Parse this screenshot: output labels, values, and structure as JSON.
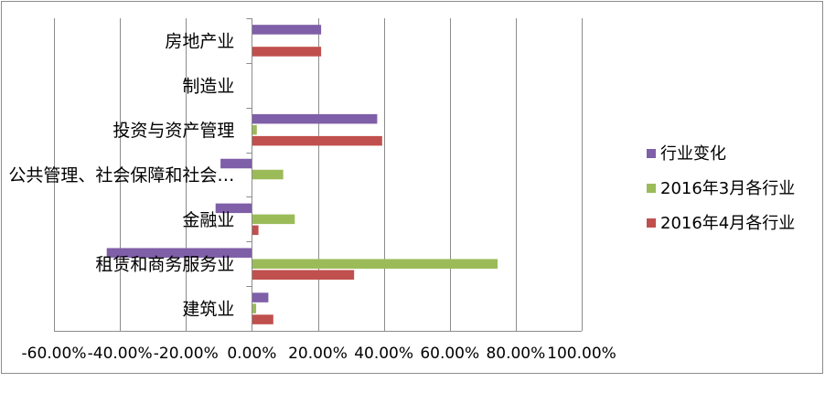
{
  "chart_data": {
    "type": "bar",
    "orientation": "horizontal",
    "categories": [
      "房地产业",
      "制造业",
      "投资与资产管理",
      "公共管理、社会保障和社会…",
      "金融业",
      "租赁和商务服务业",
      "建筑业"
    ],
    "series": [
      {
        "name": "行业变化",
        "color": "#7f5fa8",
        "values": [
          0.21,
          0.0,
          0.38,
          -0.095,
          -0.11,
          -0.44,
          0.05
        ]
      },
      {
        "name": "2016年3月各行业",
        "color": "#9bbb59",
        "values": [
          0.0,
          0.0,
          0.015,
          0.095,
          0.13,
          0.745,
          0.013
        ]
      },
      {
        "name": "2016年4月各行业",
        "color": "#c0504d",
        "values": [
          0.21,
          0.0,
          0.395,
          0.0,
          0.02,
          0.31,
          0.065
        ]
      }
    ],
    "xlim": [
      -0.6,
      1.0
    ],
    "x_ticks": [
      -0.6,
      -0.4,
      -0.2,
      0.0,
      0.2,
      0.4,
      0.6,
      0.8,
      1.0
    ],
    "x_tick_labels": [
      "-60.00%",
      "-40.00%",
      "-20.00%",
      "0.00%",
      "20.00%",
      "40.00%",
      "60.00%",
      "80.00%",
      "100.00%"
    ],
    "grid": "vertical",
    "legend_position": "right",
    "title": "",
    "xlabel": "",
    "ylabel": ""
  }
}
